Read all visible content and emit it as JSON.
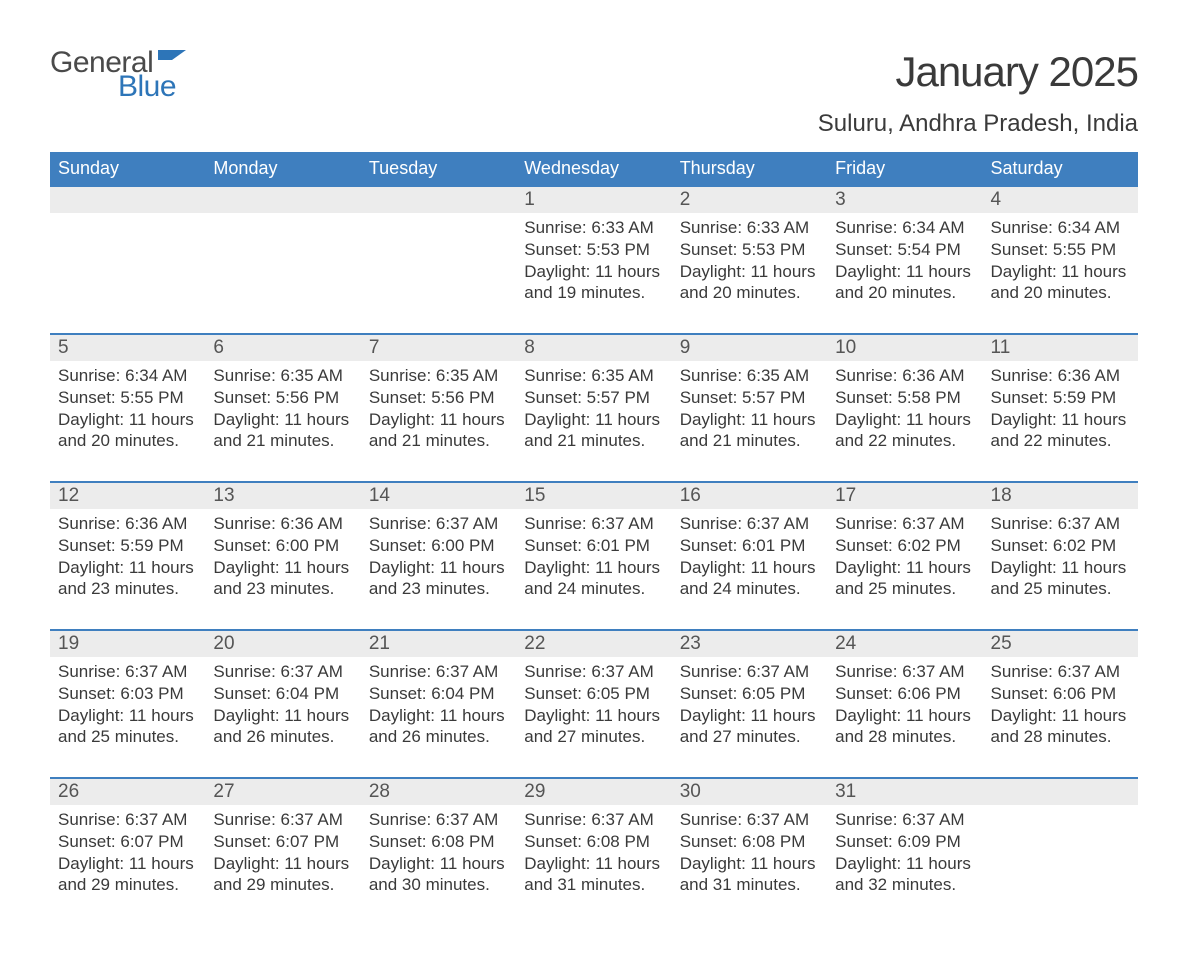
{
  "logo": {
    "text1": "General",
    "text2": "Blue",
    "flag_color": "#2d75b8",
    "text1_color": "#4a4a4a",
    "text2_color": "#2d75b8"
  },
  "title": "January 2025",
  "location": "Suluru, Andhra Pradesh, India",
  "colors": {
    "header_bg": "#3f7fbf",
    "header_text": "#ffffff",
    "row_border": "#3f7fbf",
    "daynum_bg": "#ececec",
    "body_text": "#3a3a3a",
    "background": "#ffffff"
  },
  "fonts": {
    "title_size": 42,
    "location_size": 24,
    "th_size": 18,
    "daynum_size": 19,
    "daytext_size": 17
  },
  "weekdays": [
    "Sunday",
    "Monday",
    "Tuesday",
    "Wednesday",
    "Thursday",
    "Friday",
    "Saturday"
  ],
  "weeks": [
    [
      {
        "day": "",
        "sunrise": "",
        "sunset": "",
        "daylight": ""
      },
      {
        "day": "",
        "sunrise": "",
        "sunset": "",
        "daylight": ""
      },
      {
        "day": "",
        "sunrise": "",
        "sunset": "",
        "daylight": ""
      },
      {
        "day": "1",
        "sunrise": "Sunrise: 6:33 AM",
        "sunset": "Sunset: 5:53 PM",
        "daylight": "Daylight: 11 hours and 19 minutes."
      },
      {
        "day": "2",
        "sunrise": "Sunrise: 6:33 AM",
        "sunset": "Sunset: 5:53 PM",
        "daylight": "Daylight: 11 hours and 20 minutes."
      },
      {
        "day": "3",
        "sunrise": "Sunrise: 6:34 AM",
        "sunset": "Sunset: 5:54 PM",
        "daylight": "Daylight: 11 hours and 20 minutes."
      },
      {
        "day": "4",
        "sunrise": "Sunrise: 6:34 AM",
        "sunset": "Sunset: 5:55 PM",
        "daylight": "Daylight: 11 hours and 20 minutes."
      }
    ],
    [
      {
        "day": "5",
        "sunrise": "Sunrise: 6:34 AM",
        "sunset": "Sunset: 5:55 PM",
        "daylight": "Daylight: 11 hours and 20 minutes."
      },
      {
        "day": "6",
        "sunrise": "Sunrise: 6:35 AM",
        "sunset": "Sunset: 5:56 PM",
        "daylight": "Daylight: 11 hours and 21 minutes."
      },
      {
        "day": "7",
        "sunrise": "Sunrise: 6:35 AM",
        "sunset": "Sunset: 5:56 PM",
        "daylight": "Daylight: 11 hours and 21 minutes."
      },
      {
        "day": "8",
        "sunrise": "Sunrise: 6:35 AM",
        "sunset": "Sunset: 5:57 PM",
        "daylight": "Daylight: 11 hours and 21 minutes."
      },
      {
        "day": "9",
        "sunrise": "Sunrise: 6:35 AM",
        "sunset": "Sunset: 5:57 PM",
        "daylight": "Daylight: 11 hours and 21 minutes."
      },
      {
        "day": "10",
        "sunrise": "Sunrise: 6:36 AM",
        "sunset": "Sunset: 5:58 PM",
        "daylight": "Daylight: 11 hours and 22 minutes."
      },
      {
        "day": "11",
        "sunrise": "Sunrise: 6:36 AM",
        "sunset": "Sunset: 5:59 PM",
        "daylight": "Daylight: 11 hours and 22 minutes."
      }
    ],
    [
      {
        "day": "12",
        "sunrise": "Sunrise: 6:36 AM",
        "sunset": "Sunset: 5:59 PM",
        "daylight": "Daylight: 11 hours and 23 minutes."
      },
      {
        "day": "13",
        "sunrise": "Sunrise: 6:36 AM",
        "sunset": "Sunset: 6:00 PM",
        "daylight": "Daylight: 11 hours and 23 minutes."
      },
      {
        "day": "14",
        "sunrise": "Sunrise: 6:37 AM",
        "sunset": "Sunset: 6:00 PM",
        "daylight": "Daylight: 11 hours and 23 minutes."
      },
      {
        "day": "15",
        "sunrise": "Sunrise: 6:37 AM",
        "sunset": "Sunset: 6:01 PM",
        "daylight": "Daylight: 11 hours and 24 minutes."
      },
      {
        "day": "16",
        "sunrise": "Sunrise: 6:37 AM",
        "sunset": "Sunset: 6:01 PM",
        "daylight": "Daylight: 11 hours and 24 minutes."
      },
      {
        "day": "17",
        "sunrise": "Sunrise: 6:37 AM",
        "sunset": "Sunset: 6:02 PM",
        "daylight": "Daylight: 11 hours and 25 minutes."
      },
      {
        "day": "18",
        "sunrise": "Sunrise: 6:37 AM",
        "sunset": "Sunset: 6:02 PM",
        "daylight": "Daylight: 11 hours and 25 minutes."
      }
    ],
    [
      {
        "day": "19",
        "sunrise": "Sunrise: 6:37 AM",
        "sunset": "Sunset: 6:03 PM",
        "daylight": "Daylight: 11 hours and 25 minutes."
      },
      {
        "day": "20",
        "sunrise": "Sunrise: 6:37 AM",
        "sunset": "Sunset: 6:04 PM",
        "daylight": "Daylight: 11 hours and 26 minutes."
      },
      {
        "day": "21",
        "sunrise": "Sunrise: 6:37 AM",
        "sunset": "Sunset: 6:04 PM",
        "daylight": "Daylight: 11 hours and 26 minutes."
      },
      {
        "day": "22",
        "sunrise": "Sunrise: 6:37 AM",
        "sunset": "Sunset: 6:05 PM",
        "daylight": "Daylight: 11 hours and 27 minutes."
      },
      {
        "day": "23",
        "sunrise": "Sunrise: 6:37 AM",
        "sunset": "Sunset: 6:05 PM",
        "daylight": "Daylight: 11 hours and 27 minutes."
      },
      {
        "day": "24",
        "sunrise": "Sunrise: 6:37 AM",
        "sunset": "Sunset: 6:06 PM",
        "daylight": "Daylight: 11 hours and 28 minutes."
      },
      {
        "day": "25",
        "sunrise": "Sunrise: 6:37 AM",
        "sunset": "Sunset: 6:06 PM",
        "daylight": "Daylight: 11 hours and 28 minutes."
      }
    ],
    [
      {
        "day": "26",
        "sunrise": "Sunrise: 6:37 AM",
        "sunset": "Sunset: 6:07 PM",
        "daylight": "Daylight: 11 hours and 29 minutes."
      },
      {
        "day": "27",
        "sunrise": "Sunrise: 6:37 AM",
        "sunset": "Sunset: 6:07 PM",
        "daylight": "Daylight: 11 hours and 29 minutes."
      },
      {
        "day": "28",
        "sunrise": "Sunrise: 6:37 AM",
        "sunset": "Sunset: 6:08 PM",
        "daylight": "Daylight: 11 hours and 30 minutes."
      },
      {
        "day": "29",
        "sunrise": "Sunrise: 6:37 AM",
        "sunset": "Sunset: 6:08 PM",
        "daylight": "Daylight: 11 hours and 31 minutes."
      },
      {
        "day": "30",
        "sunrise": "Sunrise: 6:37 AM",
        "sunset": "Sunset: 6:08 PM",
        "daylight": "Daylight: 11 hours and 31 minutes."
      },
      {
        "day": "31",
        "sunrise": "Sunrise: 6:37 AM",
        "sunset": "Sunset: 6:09 PM",
        "daylight": "Daylight: 11 hours and 32 minutes."
      },
      {
        "day": "",
        "sunrise": "",
        "sunset": "",
        "daylight": ""
      }
    ]
  ]
}
